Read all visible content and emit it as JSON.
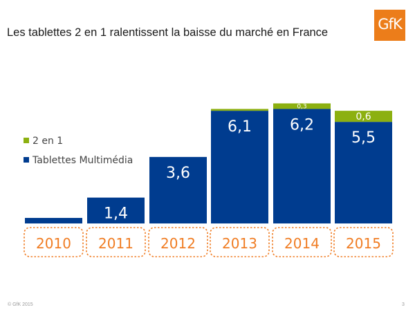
{
  "title": "Les tablettes 2 en 1 ralentissent la baisse du marché en France",
  "logo_text": "GfK",
  "footer": {
    "copyright": "© GfK 2015",
    "page_number": "3"
  },
  "colors": {
    "tablettes": "#003c8f",
    "deux_en_un": "#8cb010",
    "year_box_border": "#f07c22",
    "logo": "#ec7d1a"
  },
  "chart_data": {
    "type": "bar",
    "stacked": true,
    "categories": [
      "2010",
      "2011",
      "2012",
      "2013",
      "2014",
      "2015"
    ],
    "series": [
      {
        "name": "Tablettes Multimédia",
        "values": [
          0.3,
          1.4,
          3.6,
          6.1,
          6.2,
          5.5
        ],
        "labels": [
          "",
          "1,4",
          "3,6",
          "6,1",
          "6,2",
          "5,5"
        ]
      },
      {
        "name": "2 en 1",
        "values": [
          0,
          0,
          0,
          0.1,
          0.3,
          0.6
        ],
        "labels": [
          "",
          "",
          "",
          "",
          "0,3",
          "0,6"
        ]
      }
    ],
    "legend_placement": "left",
    "grid": false
  }
}
